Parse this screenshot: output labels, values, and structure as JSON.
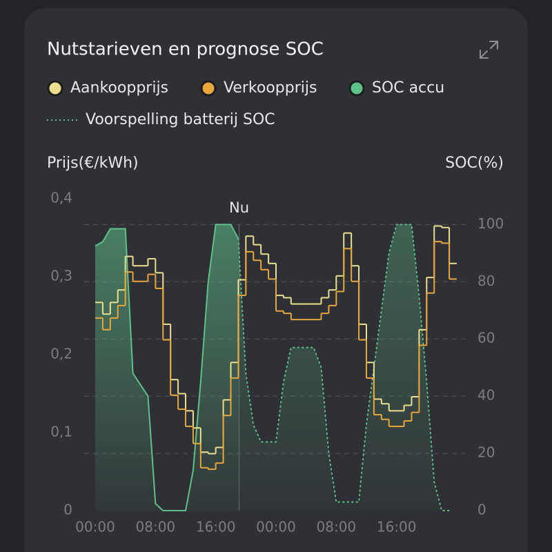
{
  "chart_data": {
    "type": "step-line",
    "title": "Nutstarieven en prognose SOC",
    "y_label": "Prijs(€/kWh)",
    "y2_label": "SOC(%)",
    "x": [
      0,
      1,
      2,
      3,
      4,
      5,
      6,
      7,
      8,
      9,
      10,
      11,
      12,
      13,
      14,
      15,
      16,
      17,
      18,
      19,
      20,
      21,
      22,
      23,
      24,
      25,
      26,
      27,
      28,
      29,
      30,
      31,
      32,
      33,
      34,
      35,
      36,
      37,
      38,
      39,
      40,
      41,
      42,
      43,
      44,
      45,
      46,
      47
    ],
    "xlim": [
      0,
      48
    ],
    "xticks": [
      {
        "value": 0,
        "label": "00:00"
      },
      {
        "value": 8,
        "label": "08:00"
      },
      {
        "value": 16,
        "label": "16:00"
      },
      {
        "value": 24,
        "label": "00:00"
      },
      {
        "value": 32,
        "label": "08:00"
      },
      {
        "value": 40,
        "label": "16:00"
      }
    ],
    "ylim": [
      0,
      0.4
    ],
    "yticks": [
      0,
      {
        "value": 0.1,
        "label": "0,1"
      },
      {
        "value": 0.2,
        "label": "0,2"
      },
      {
        "value": 0.3,
        "label": "0,3"
      },
      {
        "value": 0.4,
        "label": "0,4"
      }
    ],
    "y2lim": [
      0,
      109
    ],
    "y2ticks": [
      0,
      20,
      40,
      60,
      80,
      100
    ],
    "grid": true,
    "annotations": [
      {
        "text": "Nu",
        "x": 19.1
      }
    ],
    "series": [
      {
        "name": "Aankoopprijs",
        "color": "#ebe08f",
        "kind": "step",
        "values": [
          0.267,
          0.252,
          0.267,
          0.283,
          0.326,
          0.314,
          0.314,
          0.323,
          0.305,
          0.239,
          0.168,
          0.15,
          0.128,
          0.106,
          0.075,
          0.073,
          0.081,
          0.142,
          0.19,
          0.296,
          0.352,
          0.341,
          0.329,
          0.317,
          0.276,
          0.273,
          0.265,
          0.265,
          0.265,
          0.265,
          0.273,
          0.283,
          0.301,
          0.356,
          0.314,
          0.239,
          0.19,
          0.143,
          0.137,
          0.128,
          0.128,
          0.135,
          0.146,
          0.232,
          0.299,
          0.365,
          0.363,
          0.317
        ]
      },
      {
        "name": "Verkoopprijs",
        "color": "#e8a63c",
        "kind": "step",
        "values": [
          0.247,
          0.232,
          0.247,
          0.263,
          0.306,
          0.294,
          0.294,
          0.303,
          0.285,
          0.219,
          0.148,
          0.13,
          0.108,
          0.086,
          0.055,
          0.053,
          0.061,
          0.122,
          0.17,
          0.276,
          0.332,
          0.321,
          0.309,
          0.297,
          0.256,
          0.253,
          0.245,
          0.245,
          0.245,
          0.245,
          0.253,
          0.263,
          0.281,
          0.336,
          0.294,
          0.219,
          0.17,
          0.123,
          0.117,
          0.108,
          0.108,
          0.115,
          0.126,
          0.212,
          0.279,
          0.345,
          0.343,
          0.297
        ]
      },
      {
        "name": "SOC accu",
        "color": "#5fc18a",
        "kind": "area",
        "axis": "y2",
        "values": [
          92.5,
          94,
          98.5,
          98.5,
          98.5,
          48,
          44,
          40,
          2.4,
          0,
          0,
          0,
          0,
          14,
          45,
          80,
          100,
          100,
          100,
          95,
          null,
          null,
          null,
          null,
          null,
          null,
          null,
          null,
          null,
          null,
          null,
          null,
          null,
          null,
          null,
          null,
          null,
          null,
          null,
          null,
          null,
          null,
          null,
          null,
          null,
          null,
          null,
          null
        ]
      },
      {
        "name": "Voorspelling batterij SOC",
        "color": "#5fc18a",
        "kind": "dotted",
        "axis": "y2",
        "values": [
          null,
          null,
          null,
          null,
          null,
          null,
          null,
          null,
          null,
          null,
          null,
          null,
          null,
          null,
          null,
          null,
          null,
          null,
          null,
          95,
          48,
          30,
          24,
          24,
          24,
          45,
          57,
          57,
          57,
          57,
          50,
          20,
          3,
          3,
          3,
          3,
          30,
          50,
          70,
          90,
          100,
          100,
          100,
          75,
          45,
          10,
          0,
          0
        ]
      }
    ]
  }
}
